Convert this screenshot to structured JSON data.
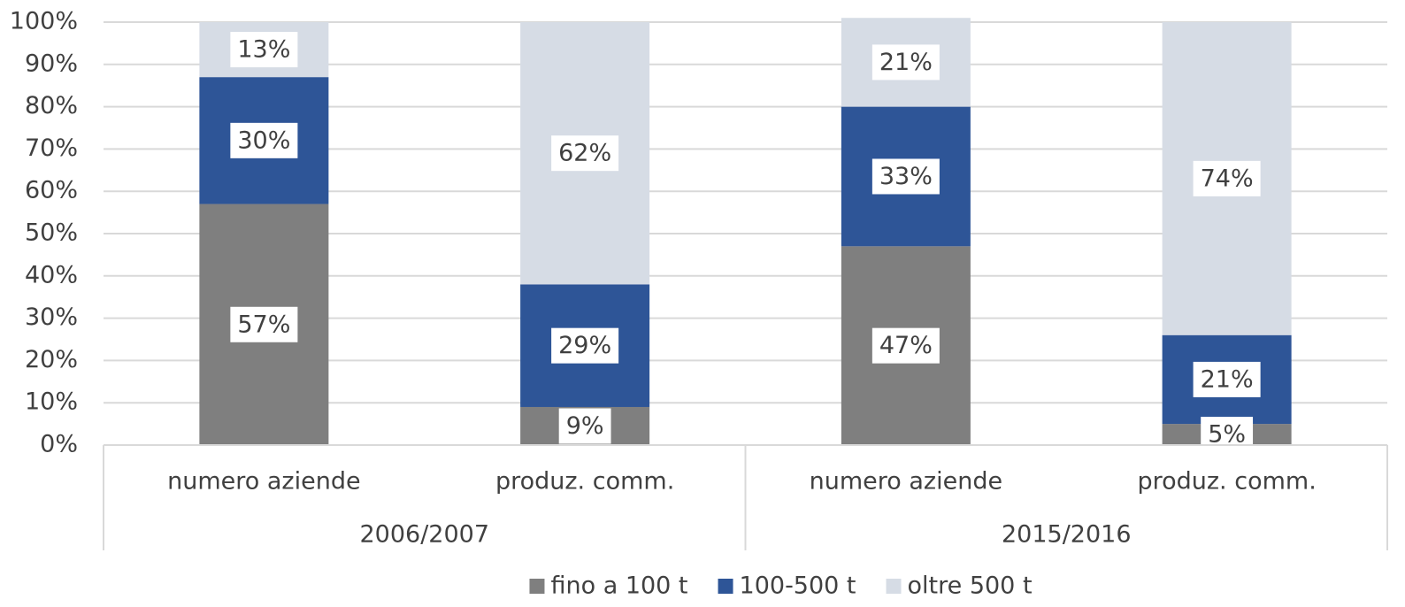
{
  "chart_data": {
    "type": "stacked_bar",
    "categories": [
      "numero aziende",
      "produz. comm.",
      "numero aziende",
      "produz. comm."
    ],
    "groups": [
      "2006/2007",
      "2015/2016"
    ],
    "series": [
      {
        "name": "fino a 100 t",
        "color": "#7f7f7f",
        "values": [
          57,
          9,
          47,
          5
        ],
        "value_labels": [
          "57%",
          "9%",
          "47%",
          "5%"
        ]
      },
      {
        "name": "100-500 t",
        "color": "#2e5597",
        "values": [
          30,
          29,
          33,
          21
        ],
        "value_labels": [
          "30%",
          "29%",
          "33%",
          "21%"
        ]
      },
      {
        "name": "oltre 500 t",
        "color": "#d6dce5",
        "values": [
          13,
          62,
          21,
          74
        ],
        "value_labels": [
          "13%",
          "62%",
          "21%",
          "74%"
        ]
      }
    ],
    "ylim": [
      0,
      100
    ],
    "yticks": [
      {
        "value": 0,
        "label": "0%"
      },
      {
        "value": 10,
        "label": "10%"
      },
      {
        "value": 20,
        "label": "20%"
      },
      {
        "value": 30,
        "label": "30%"
      },
      {
        "value": 40,
        "label": "40%"
      },
      {
        "value": 50,
        "label": "50%"
      },
      {
        "value": 60,
        "label": "60%"
      },
      {
        "value": 70,
        "label": "70%"
      },
      {
        "value": 80,
        "label": "80%"
      },
      {
        "value": 90,
        "label": "90%"
      },
      {
        "value": 100,
        "label": "100%"
      }
    ],
    "grid": true,
    "legend": "bottom"
  }
}
